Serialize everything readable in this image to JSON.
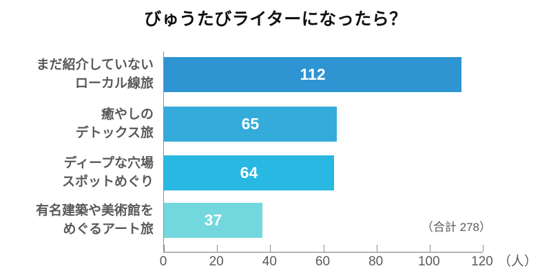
{
  "chart_data": {
    "type": "bar",
    "orientation": "horizontal",
    "title": "びゅうたびライターになったら？",
    "categories": [
      [
        "まだ紹介していない",
        "ローカル線旅"
      ],
      [
        "癒やしの",
        "デトックス旅"
      ],
      [
        "ディープな穴場",
        "スポットめぐり"
      ],
      [
        "有名建築や美術館を",
        "めぐるアート旅"
      ]
    ],
    "values": [
      112,
      65,
      64,
      37
    ],
    "bar_colors": [
      "#2e94d2",
      "#35abdb",
      "#28b8e1",
      "#72d8de"
    ],
    "value_label_color": "#ffffff",
    "category_label_color": "#595959",
    "xlim": [
      0,
      120
    ],
    "x_ticks": [
      0,
      20,
      40,
      60,
      80,
      100,
      120
    ],
    "x_unit": "（人）",
    "total_note": "（合計 278）",
    "grid": "off",
    "legend": "none",
    "background": "#ffffff"
  }
}
